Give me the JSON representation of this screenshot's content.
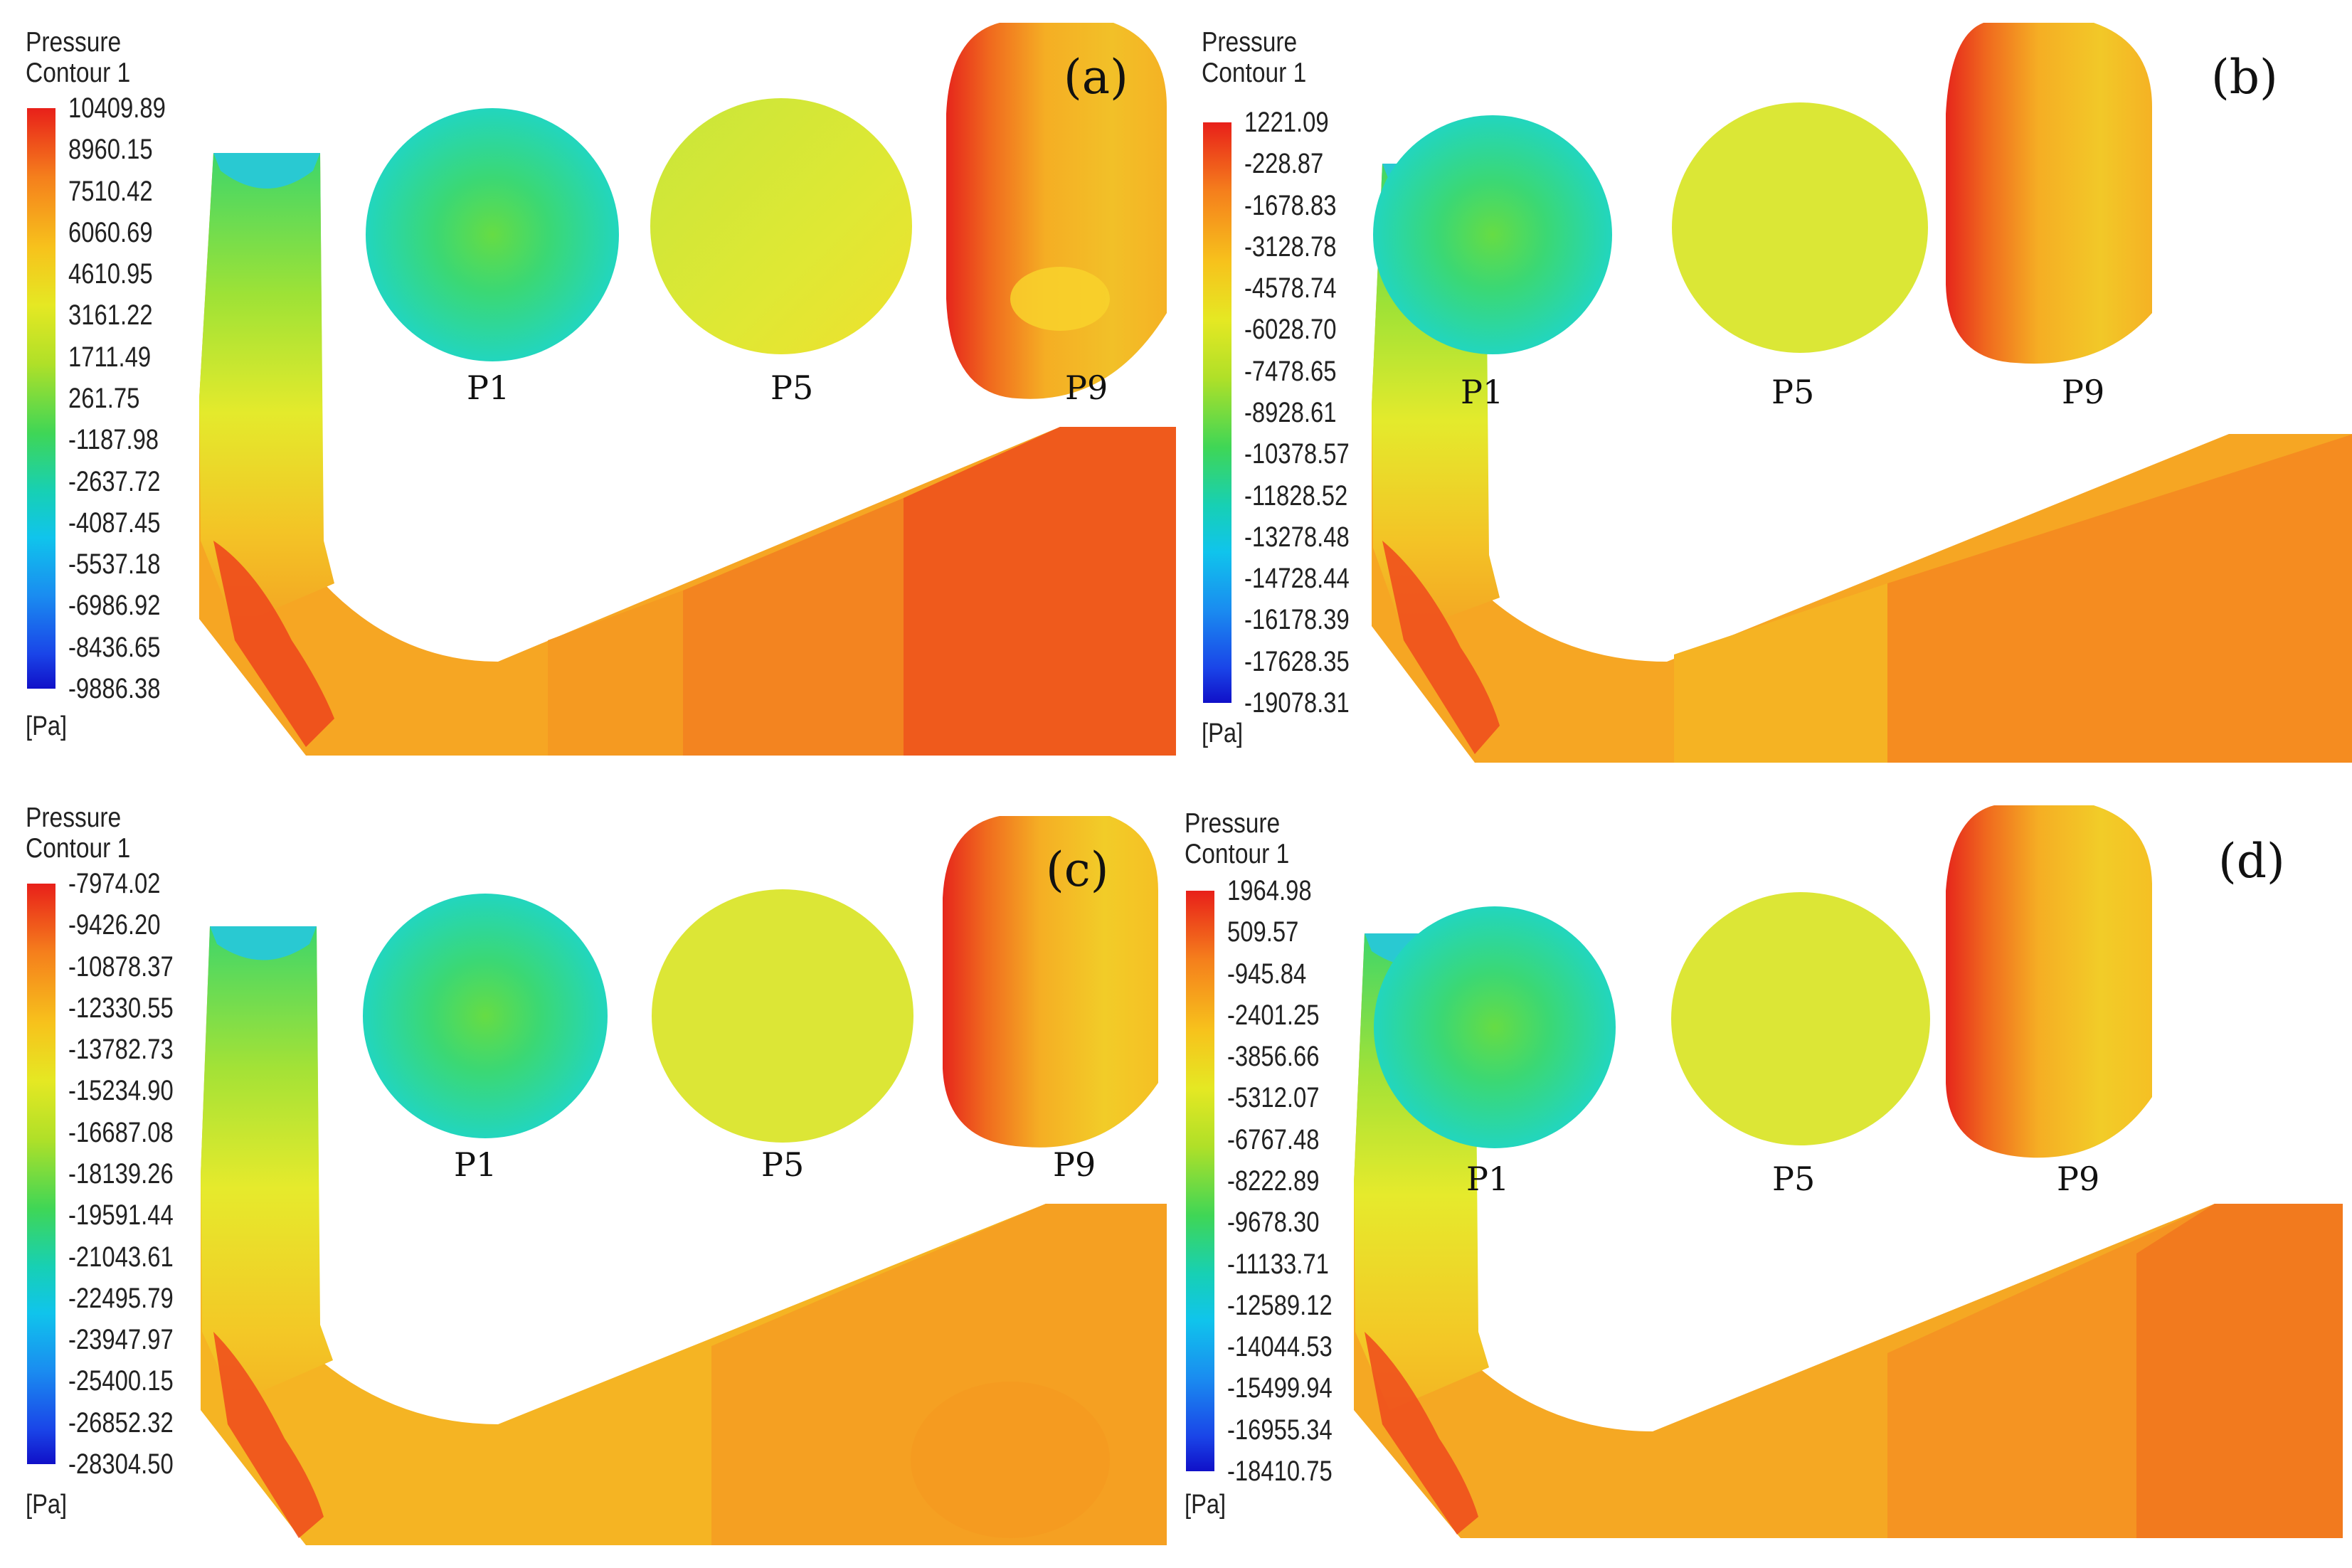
{
  "legend_title_line1": "Pressure",
  "legend_title_line2": "Contour 1",
  "legend_unit": "[Pa]",
  "section_labels": [
    "P1",
    "P5",
    "P9"
  ],
  "panels": [
    {
      "label": "(a)",
      "ticks": [
        "10409.89",
        "8960.15",
        "7510.42",
        "6060.69",
        "4610.95",
        "3161.22",
        "1711.49",
        "261.75",
        "-1187.98",
        "-2637.72",
        "-4087.45",
        "-5537.18",
        "-6986.92",
        "-8436.65",
        "-9886.38"
      ]
    },
    {
      "label": "(b)",
      "ticks": [
        "1221.09",
        "-228.87",
        "-1678.83",
        "-3128.78",
        "-4578.74",
        "-6028.70",
        "-7478.65",
        "-8928.61",
        "-10378.57",
        "-11828.52",
        "-13278.48",
        "-14728.44",
        "-16178.39",
        "-17628.35",
        "-19078.31"
      ]
    },
    {
      "label": "(c)",
      "ticks": [
        "-7974.02",
        "-9426.20",
        "-10878.37",
        "-12330.55",
        "-13782.73",
        "-15234.90",
        "-16687.08",
        "-18139.26",
        "-19591.44",
        "-21043.61",
        "-22495.79",
        "-23947.97",
        "-25400.15",
        "-26852.32",
        "-28304.50"
      ]
    },
    {
      "label": "(d)",
      "ticks": [
        "1964.98",
        "509.57",
        "-945.84",
        "-2401.25",
        "-3856.66",
        "-5312.07",
        "-6767.48",
        "-8222.89",
        "-9678.30",
        "-11133.71",
        "-12589.12",
        "-14044.53",
        "-15499.94",
        "-16955.34",
        "-18410.75"
      ]
    }
  ],
  "colors": {
    "red": "#e8281c",
    "orange_red": "#f2561a",
    "orange": "#f58a1f",
    "light_orange": "#f6ab22",
    "yellow": "#f3d22a",
    "yellow_green": "#d2ea30",
    "green": "#5fd944",
    "cyan": "#22d6b8",
    "blue": "#2a8af0"
  }
}
